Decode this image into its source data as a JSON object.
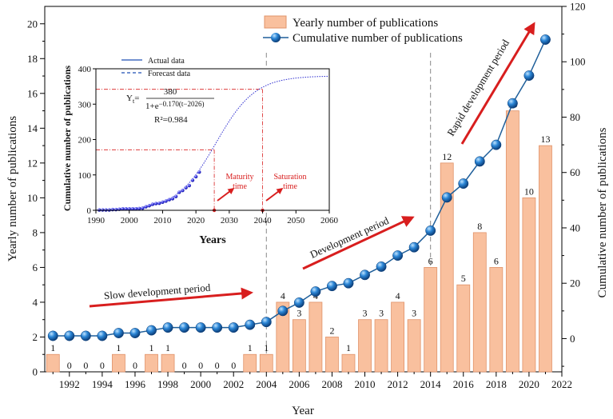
{
  "chart_data": [
    {
      "type": "bar+line",
      "xlabel": "Year",
      "ylabel_left": "Yearly number of publications",
      "ylabel_right": "Cumulative number of publications",
      "xlim": [
        1990.5,
        2022
      ],
      "ylim_left": [
        0,
        21
      ],
      "ylim_right": [
        -12,
        120
      ],
      "x_ticks": [
        1992,
        1994,
        1996,
        1998,
        2000,
        2002,
        2004,
        2006,
        2008,
        2010,
        2012,
        2014,
        2016,
        2018,
        2020,
        2022
      ],
      "y_ticks_left": [
        0,
        2,
        4,
        6,
        8,
        10,
        12,
        14,
        16,
        18,
        20
      ],
      "y_ticks_right": [
        0,
        20,
        40,
        60,
        80,
        100,
        120
      ],
      "years": [
        1991,
        1992,
        1993,
        1994,
        1995,
        1996,
        1997,
        1998,
        1999,
        2000,
        2001,
        2002,
        2003,
        2004,
        2005,
        2006,
        2007,
        2008,
        2009,
        2010,
        2011,
        2012,
        2013,
        2014,
        2015,
        2016,
        2017,
        2018,
        2019,
        2020,
        2021
      ],
      "series": [
        {
          "name": "Yearly number of publications",
          "type": "bar",
          "axis": "left",
          "values": [
            1,
            0,
            0,
            0,
            1,
            0,
            1,
            1,
            0,
            0,
            0,
            0,
            1,
            1,
            4,
            3,
            4,
            2,
            1,
            3,
            3,
            4,
            3,
            6,
            12,
            5,
            8,
            6,
            15,
            10,
            13
          ]
        },
        {
          "name": "Cumulative number of publications",
          "type": "line",
          "axis": "right",
          "values": [
            1,
            1,
            1,
            1,
            2,
            2,
            3,
            4,
            4,
            4,
            4,
            4,
            5,
            6,
            10,
            13,
            17,
            19,
            20,
            23,
            26,
            30,
            33,
            39,
            51,
            56,
            64,
            70,
            85,
            95,
            108
          ]
        }
      ],
      "vlines": [
        2004,
        2014
      ],
      "annotations": [
        {
          "text": "Slow development period",
          "x": 1997.5,
          "y": 4.3
        },
        {
          "text": "Development period",
          "x": 2010,
          "y": 8.0
        },
        {
          "text": "Rapid development period",
          "x": 2018.5,
          "y": 17.2
        }
      ],
      "colors": {
        "bar_fill": "#f9c09e",
        "bar_edge": "#e0936a",
        "line": "#1f5f9a",
        "marker": "#1a66b0",
        "arrow": "#d81e1e",
        "vline": "#888888"
      }
    },
    {
      "type": "scatter+line",
      "title": "inset",
      "xlabel": "Years",
      "ylabel": "Cumulative number of publications",
      "xlim": [
        1990,
        2060
      ],
      "ylim": [
        0,
        400
      ],
      "x_ticks": [
        1990,
        2000,
        2010,
        2020,
        2030,
        2040,
        2050,
        2060
      ],
      "y_ticks": [
        0,
        100,
        200,
        300,
        400
      ],
      "legend": [
        "Actual data",
        "Forecast data"
      ],
      "formula": {
        "lhs": "Y",
        "sub": "t",
        "eq": "=",
        "numerator": "380",
        "denominator": "1+e",
        "exponent": "−0.170(t−2026)"
      },
      "r2": "R²=0.984",
      "logistic": {
        "K": 380,
        "r": 0.17,
        "t0": 2026
      },
      "actual_points": {
        "start_year": 1991,
        "values": [
          1,
          1,
          1,
          1,
          2,
          2,
          3,
          4,
          4,
          4,
          4,
          4,
          5,
          6,
          10,
          13,
          17,
          19,
          20,
          23,
          26,
          30,
          33,
          39,
          51,
          56,
          64,
          70,
          85,
          95,
          108
        ]
      },
      "markers": [
        {
          "label_line1": "Maturity",
          "label_line2": "time",
          "x": 2025.5,
          "y": 171
        },
        {
          "label_line1": "Saturation",
          "label_line2": "time",
          "x": 2040,
          "y": 342
        }
      ]
    }
  ]
}
